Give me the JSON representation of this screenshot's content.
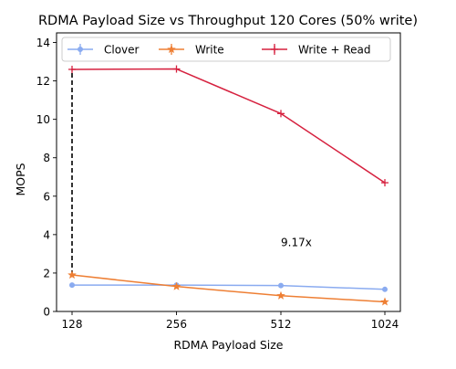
{
  "chart_data": {
    "type": "line",
    "title": "RDMA Payload Size vs Throughput 120 Cores (50% write)",
    "xlabel": "RDMA Payload Size",
    "ylabel": "MOPS",
    "categories": [
      "128",
      "256",
      "512",
      "1024"
    ],
    "ylim": [
      0,
      14.5
    ],
    "yticks": [
      "0",
      "2",
      "4",
      "6",
      "8",
      "10",
      "12",
      "14"
    ],
    "legend_position": "top",
    "grid": false,
    "series": [
      {
        "name": "Clover",
        "color": "#8aabf0",
        "marker": "circle",
        "values": [
          1.37,
          1.37,
          1.35,
          1.15
        ]
      },
      {
        "name": "Write",
        "color": "#ee7f34",
        "marker": "star",
        "values": [
          1.9,
          1.3,
          0.82,
          0.5
        ]
      },
      {
        "name": "Write + Read",
        "color": "#d6213f",
        "marker": "plus",
        "values": [
          12.6,
          12.62,
          10.3,
          6.7
        ]
      }
    ],
    "annotations": [
      {
        "text": "9.17x",
        "x": "512",
        "y": 3.4
      }
    ],
    "dashed_connector": {
      "x": "128",
      "y_from": 1.9,
      "y_to": 12.6,
      "color": "#000000"
    }
  }
}
